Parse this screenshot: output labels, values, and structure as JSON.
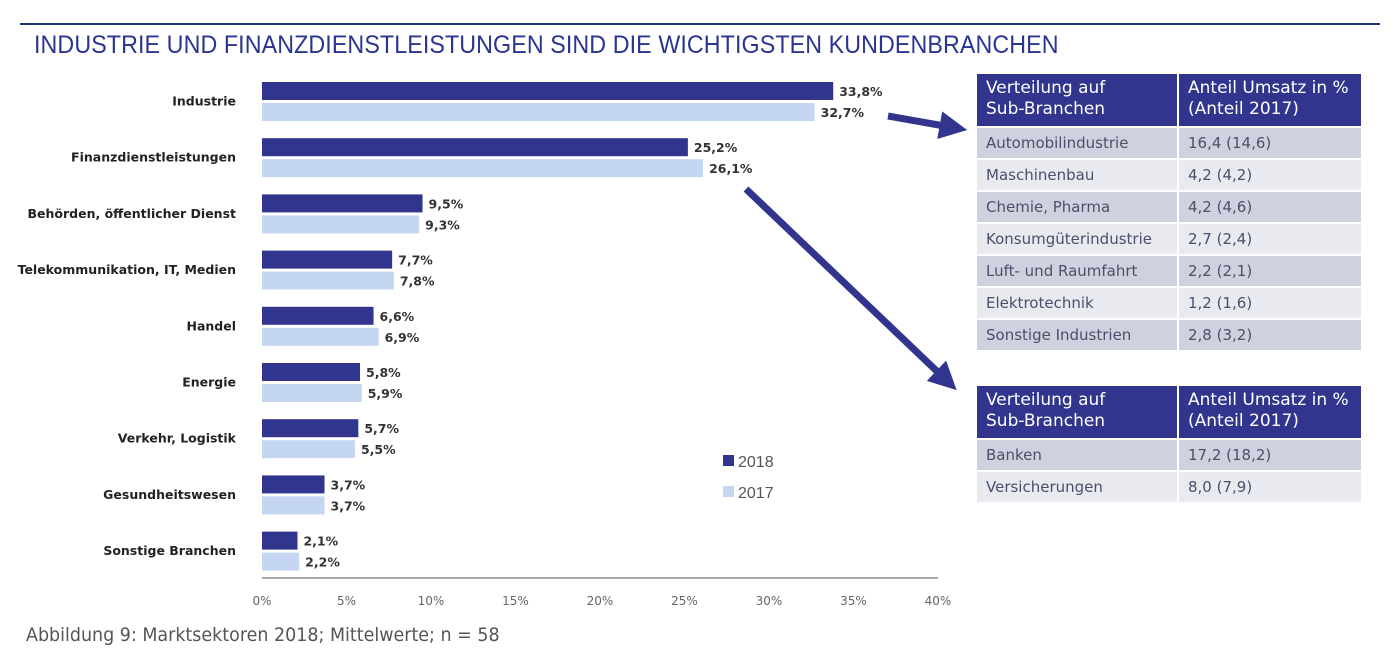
{
  "title": "INDUSTRIE UND FINANZDIENSTLEISTUNGEN SIND DIE WICHTIGSTEN KUNDENBRANCHEN",
  "caption": "Abbildung 9: Marktsektoren 2018; Mittelwerte; n = 58",
  "colors": {
    "series_2018": "#31358e",
    "series_2017": "#c5d6f2",
    "accent": "#2b3590"
  },
  "chart_data": {
    "type": "bar",
    "orientation": "horizontal",
    "title": "INDUSTRIE UND FINANZDIENSTLEISTUNGEN SIND DIE WICHTIGSTEN KUNDENBRANCHEN",
    "xlabel": "",
    "ylabel": "",
    "xlim": [
      0,
      40
    ],
    "x_ticks": [
      "0%",
      "5%",
      "10%",
      "15%",
      "20%",
      "25%",
      "30%",
      "35%",
      "40%"
    ],
    "grid": false,
    "legend_position": "bottom-right",
    "categories": [
      "Industrie",
      "Finanzdienstleistungen",
      "Behörden, öffentlicher Dienst",
      "Telekommunikation, IT, Medien",
      "Handel",
      "Energie",
      "Verkehr, Logistik",
      "Gesundheitswesen",
      "Sonstige Branchen"
    ],
    "series": [
      {
        "name": "2018",
        "values": [
          33.8,
          25.2,
          9.5,
          7.7,
          6.6,
          5.8,
          5.7,
          3.7,
          2.1
        ],
        "labels": [
          "33,8%",
          "25,2%",
          "9,5%",
          "7,7%",
          "6,6%",
          "5,8%",
          "5,7%",
          "3,7%",
          "2,1%"
        ]
      },
      {
        "name": "2017",
        "values": [
          32.7,
          26.1,
          9.3,
          7.8,
          6.9,
          5.9,
          5.5,
          3.7,
          2.2
        ],
        "labels": [
          "32,7%",
          "26,1%",
          "9,3%",
          "7,8%",
          "6,9%",
          "5,9%",
          "5,5%",
          "3,7%",
          "2,2%"
        ]
      }
    ]
  },
  "tables": [
    {
      "header": [
        "Verteilung auf Sub-Branchen",
        "Anteil Umsatz in % (Anteil 2017)"
      ],
      "header_lines": [
        [
          "Verteilung auf",
          "Sub-Branchen"
        ],
        [
          "Anteil Umsatz in %",
          "(Anteil 2017)"
        ]
      ],
      "rows": [
        [
          "Automobilindustrie",
          "16,4 (14,6)"
        ],
        [
          "Maschinenbau",
          "4,2 (4,2)"
        ],
        [
          "Chemie, Pharma",
          "4,2 (4,6)"
        ],
        [
          "Konsumgüterindustrie",
          "2,7 (2,4)"
        ],
        [
          "Luft- und Raumfahrt",
          "2,2 (2,1)"
        ],
        [
          "Elektrotechnik",
          "1,2 (1,6)"
        ],
        [
          "Sonstige Industrien",
          "2,8 (3,2)"
        ]
      ]
    },
    {
      "header": [
        "Verteilung auf Sub-Branchen",
        "Anteil Umsatz in % (Anteil 2017)"
      ],
      "header_lines": [
        [
          "Verteilung auf",
          "Sub-Branchen"
        ],
        [
          "Anteil Umsatz in %",
          "(Anteil 2017)"
        ]
      ],
      "rows": [
        [
          "Banken",
          "17,2 (18,2)"
        ],
        [
          "Versicherungen",
          "8,0 (7,9)"
        ]
      ]
    }
  ],
  "arrows": [
    {
      "from": "Industrie",
      "to": "table-1"
    },
    {
      "from": "Finanzdienstleistungen",
      "to": "table-2"
    }
  ]
}
